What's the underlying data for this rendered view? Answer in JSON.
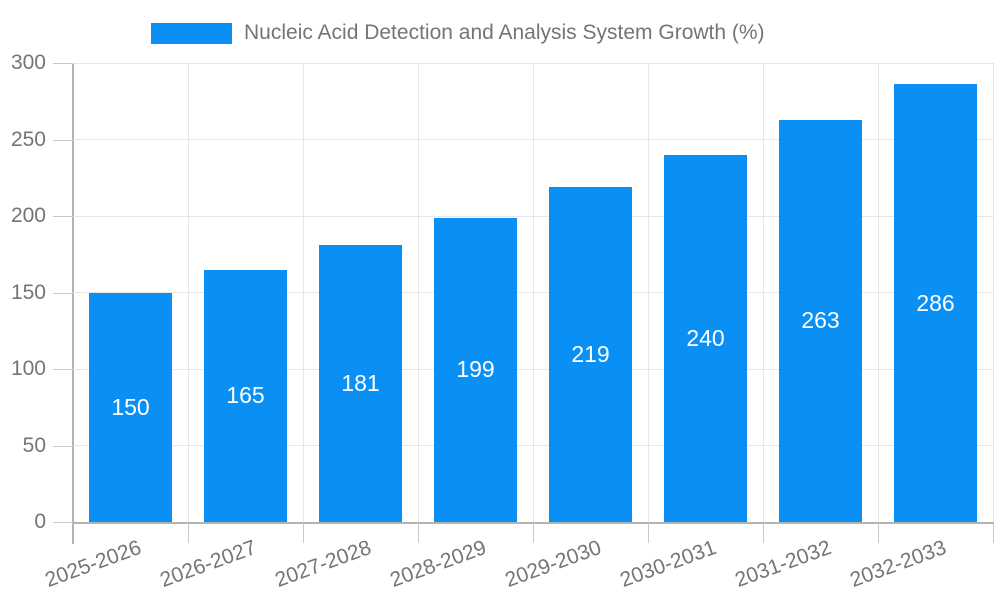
{
  "chart_data": {
    "type": "bar",
    "title": "Nucleic Acid Detection and Analysis System Growth (%)",
    "categories": [
      "2025-2026",
      "2026-2027",
      "2027-2028",
      "2028-2029",
      "2029-2030",
      "2030-2031",
      "2031-2032",
      "2032-2033"
    ],
    "series": [
      {
        "name": "Nucleic Acid Detection and Analysis System Growth (%)",
        "values": [
          150,
          165,
          181,
          199,
          219,
          240,
          263,
          286
        ]
      }
    ],
    "value_labels": [
      "150",
      "165",
      "181",
      "199",
      "219",
      "240",
      "263",
      "286"
    ],
    "xlabel": "",
    "ylabel": "",
    "ylim": [
      0,
      300
    ],
    "yticks": [
      0,
      50,
      100,
      150,
      200,
      250,
      300
    ],
    "grid": true,
    "legend_position": "top-center",
    "x_label_rotation_deg": -20,
    "colors": {
      "bar": "#0a90f5",
      "value_label": "#ffffff",
      "axis_text": "#757575",
      "axis_line": "#b3b3b3",
      "gridline": "#e6e6e6",
      "tick": "#c9c9c9",
      "background": "#ffffff"
    }
  }
}
